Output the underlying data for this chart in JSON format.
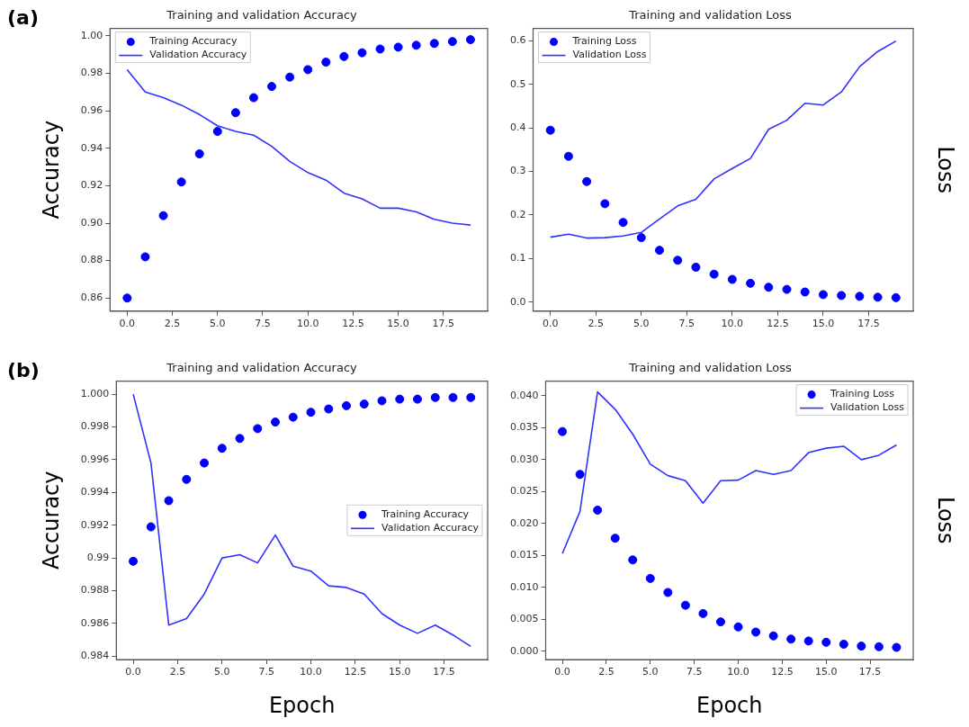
{
  "chart_data": [
    {
      "type": "scatter",
      "title": "Training and validation Accuracy",
      "ylabel": "Accuracy",
      "annotations": [
        "(a)"
      ],
      "legend": "top left",
      "grid": false,
      "x": [
        0,
        1,
        2,
        3,
        4,
        5,
        6,
        7,
        8,
        9,
        10,
        11,
        12,
        13,
        14,
        15,
        16,
        17,
        18,
        19
      ],
      "xlim": [
        -0.95,
        19.95
      ],
      "xticks": [
        {
          "value": 0,
          "label": "0.0"
        },
        {
          "value": 2.5,
          "label": "2.5"
        },
        {
          "value": 5,
          "label": "5.0"
        },
        {
          "value": 7.5,
          "label": "7.5"
        },
        {
          "value": 10,
          "label": "10.0"
        },
        {
          "value": 12.5,
          "label": "12.5"
        },
        {
          "value": 15,
          "label": "15.0"
        },
        {
          "value": 17.5,
          "label": "17.5"
        }
      ],
      "ylim": [
        0.853,
        1.004
      ],
      "yticks": [
        {
          "value": 0.86,
          "label": "0.86"
        },
        {
          "value": 0.88,
          "label": "0.88"
        },
        {
          "value": 0.9,
          "label": "0.90"
        },
        {
          "value": 0.92,
          "label": "0.92"
        },
        {
          "value": 0.94,
          "label": "0.94"
        },
        {
          "value": 0.96,
          "label": "0.96"
        },
        {
          "value": 0.98,
          "label": "0.98"
        },
        {
          "value": 1,
          "label": "1.00"
        }
      ],
      "series": [
        {
          "name": "Training Accuracy",
          "type": "scatter",
          "marker": "circle",
          "color": "#0000ff",
          "values": [
            0.86,
            0.882,
            0.904,
            0.922,
            0.937,
            0.949,
            0.959,
            0.967,
            0.973,
            0.978,
            0.982,
            0.986,
            0.989,
            0.991,
            0.993,
            0.994,
            0.995,
            0.996,
            0.997,
            0.998
          ]
        },
        {
          "name": "Validation Accuracy",
          "type": "line",
          "marker": "none",
          "color": "#3030ff",
          "values": [
            0.982,
            0.97,
            0.967,
            0.963,
            0.958,
            0.952,
            0.949,
            0.947,
            0.941,
            0.933,
            0.927,
            0.923,
            0.916,
            0.913,
            0.908,
            0.908,
            0.906,
            0.902,
            0.9,
            0.899
          ]
        }
      ]
    },
    {
      "type": "scatter",
      "title": "Training and validation Loss",
      "ylabel": "Loss",
      "legend": "top left",
      "grid": false,
      "x": [
        0,
        1,
        2,
        3,
        4,
        5,
        6,
        7,
        8,
        9,
        10,
        11,
        12,
        13,
        14,
        15,
        16,
        17,
        18,
        19
      ],
      "xlim": [
        -0.95,
        19.95
      ],
      "xticks": [
        {
          "value": 0,
          "label": "0.0"
        },
        {
          "value": 2.5,
          "label": "2.5"
        },
        {
          "value": 5,
          "label": "5.0"
        },
        {
          "value": 7.5,
          "label": "7.5"
        },
        {
          "value": 10,
          "label": "10.0"
        },
        {
          "value": 12.5,
          "label": "12.5"
        },
        {
          "value": 15,
          "label": "15.0"
        },
        {
          "value": 17.5,
          "label": "17.5"
        }
      ],
      "ylim": [
        -0.021,
        0.629
      ],
      "yticks": [
        {
          "value": 0,
          "label": "0.0"
        },
        0.1,
        0.2,
        0.3,
        0.4,
        0.5,
        0.6
      ],
      "series": [
        {
          "name": "Training Loss",
          "type": "scatter",
          "marker": "circle",
          "color": "#0000ff",
          "values": [
            0.395,
            0.335,
            0.277,
            0.226,
            0.183,
            0.148,
            0.119,
            0.096,
            0.08,
            0.064,
            0.052,
            0.043,
            0.034,
            0.029,
            0.023,
            0.017,
            0.015,
            0.013,
            0.011,
            0.01
          ]
        },
        {
          "name": "Validation Loss",
          "type": "line",
          "marker": "none",
          "color": "#3030ff",
          "values": [
            0.149,
            0.156,
            0.147,
            0.148,
            0.152,
            0.16,
            0.191,
            0.221,
            0.236,
            0.283,
            0.307,
            0.33,
            0.397,
            0.418,
            0.457,
            0.453,
            0.483,
            0.541,
            0.576,
            0.6
          ]
        }
      ]
    },
    {
      "type": "scatter",
      "title": "Training and validation Accuracy",
      "ylabel": "Accuracy",
      "xlabel": "Epoch",
      "annotations": [
        "(b)"
      ],
      "legend": "right",
      "grid": false,
      "x": [
        0,
        1,
        2,
        3,
        4,
        5,
        6,
        7,
        8,
        9,
        10,
        11,
        12,
        13,
        14,
        15,
        16,
        17,
        18,
        19
      ],
      "xlim": [
        -0.95,
        19.95
      ],
      "xticks": [
        {
          "value": 0,
          "label": "0.0"
        },
        {
          "value": 2.5,
          "label": "2.5"
        },
        {
          "value": 5,
          "label": "5.0"
        },
        {
          "value": 7.5,
          "label": "7.5"
        },
        {
          "value": 10,
          "label": "10.0"
        },
        {
          "value": 12.5,
          "label": "12.5"
        },
        {
          "value": 15,
          "label": "15.0"
        },
        {
          "value": 17.5,
          "label": "17.5"
        }
      ],
      "ylim": [
        0.9838,
        1.0008
      ],
      "yticks": [
        0.984,
        0.986,
        0.988,
        0.99,
        0.992,
        0.994,
        0.996,
        0.998,
        {
          "value": 1,
          "label": "1.000"
        }
      ],
      "series": [
        {
          "name": "Training Accuracy",
          "type": "scatter",
          "marker": "circle",
          "color": "#0000ff",
          "values": [
            0.9898,
            0.9919,
            0.9935,
            0.9948,
            0.9958,
            0.9967,
            0.9973,
            0.9979,
            0.9983,
            0.9986,
            0.9989,
            0.9991,
            0.9993,
            0.9994,
            0.9996,
            0.9997,
            0.9997,
            0.9998,
            0.9998,
            0.9998
          ]
        },
        {
          "name": "Validation Accuracy",
          "type": "line",
          "marker": "none",
          "color": "#3030ff",
          "values": [
            1.0,
            0.9958,
            0.9859,
            0.9863,
            0.9878,
            0.99,
            0.9902,
            0.9897,
            0.9914,
            0.9895,
            0.9892,
            0.9883,
            0.9882,
            0.9878,
            0.9866,
            0.9859,
            0.9854,
            0.9859,
            0.9853,
            0.9846
          ]
        }
      ]
    },
    {
      "type": "scatter",
      "title": "Training and validation Loss",
      "ylabel": "Loss",
      "xlabel": "Epoch",
      "legend": "top right",
      "grid": false,
      "x": [
        0,
        1,
        2,
        3,
        4,
        5,
        6,
        7,
        8,
        9,
        10,
        11,
        12,
        13,
        14,
        15,
        16,
        17,
        18,
        19
      ],
      "xlim": [
        -0.95,
        19.95
      ],
      "xticks": [
        {
          "value": 0,
          "label": "0.0"
        },
        {
          "value": 2.5,
          "label": "2.5"
        },
        {
          "value": 5,
          "label": "5.0"
        },
        {
          "value": 7.5,
          "label": "7.5"
        },
        {
          "value": 10,
          "label": "10.0"
        },
        {
          "value": 12.5,
          "label": "12.5"
        },
        {
          "value": 15,
          "label": "15.0"
        },
        {
          "value": 17.5,
          "label": "17.5"
        }
      ],
      "ylim": [
        -0.0013,
        0.0423
      ],
      "yticks": [
        {
          "value": 0,
          "label": "0.000"
        },
        {
          "value": 0.005,
          "label": "0.005"
        },
        {
          "value": 0.01,
          "label": "0.010"
        },
        {
          "value": 0.015,
          "label": "0.015"
        },
        {
          "value": 0.02,
          "label": "0.020"
        },
        {
          "value": 0.025,
          "label": "0.025"
        },
        {
          "value": 0.03,
          "label": "0.030"
        },
        {
          "value": 0.035,
          "label": "0.035"
        },
        {
          "value": 0.04,
          "label": "0.040"
        }
      ],
      "series": [
        {
          "name": "Training Loss",
          "type": "scatter",
          "marker": "circle",
          "color": "#0000ff",
          "values": [
            0.0344,
            0.0277,
            0.0221,
            0.0177,
            0.0143,
            0.0114,
            0.0092,
            0.0072,
            0.0059,
            0.0046,
            0.0038,
            0.003,
            0.0024,
            0.0019,
            0.0016,
            0.0014,
            0.0011,
            0.0008,
            0.0007,
            0.0006
          ]
        },
        {
          "name": "Validation Loss",
          "type": "line",
          "marker": "none",
          "color": "#3030ff",
          "values": [
            0.0153,
            0.0219,
            0.0406,
            0.0379,
            0.034,
            0.0293,
            0.0275,
            0.0267,
            0.0232,
            0.0267,
            0.0268,
            0.0283,
            0.0277,
            0.0283,
            0.0311,
            0.0318,
            0.0321,
            0.03,
            0.0307,
            0.0323
          ]
        }
      ]
    }
  ]
}
